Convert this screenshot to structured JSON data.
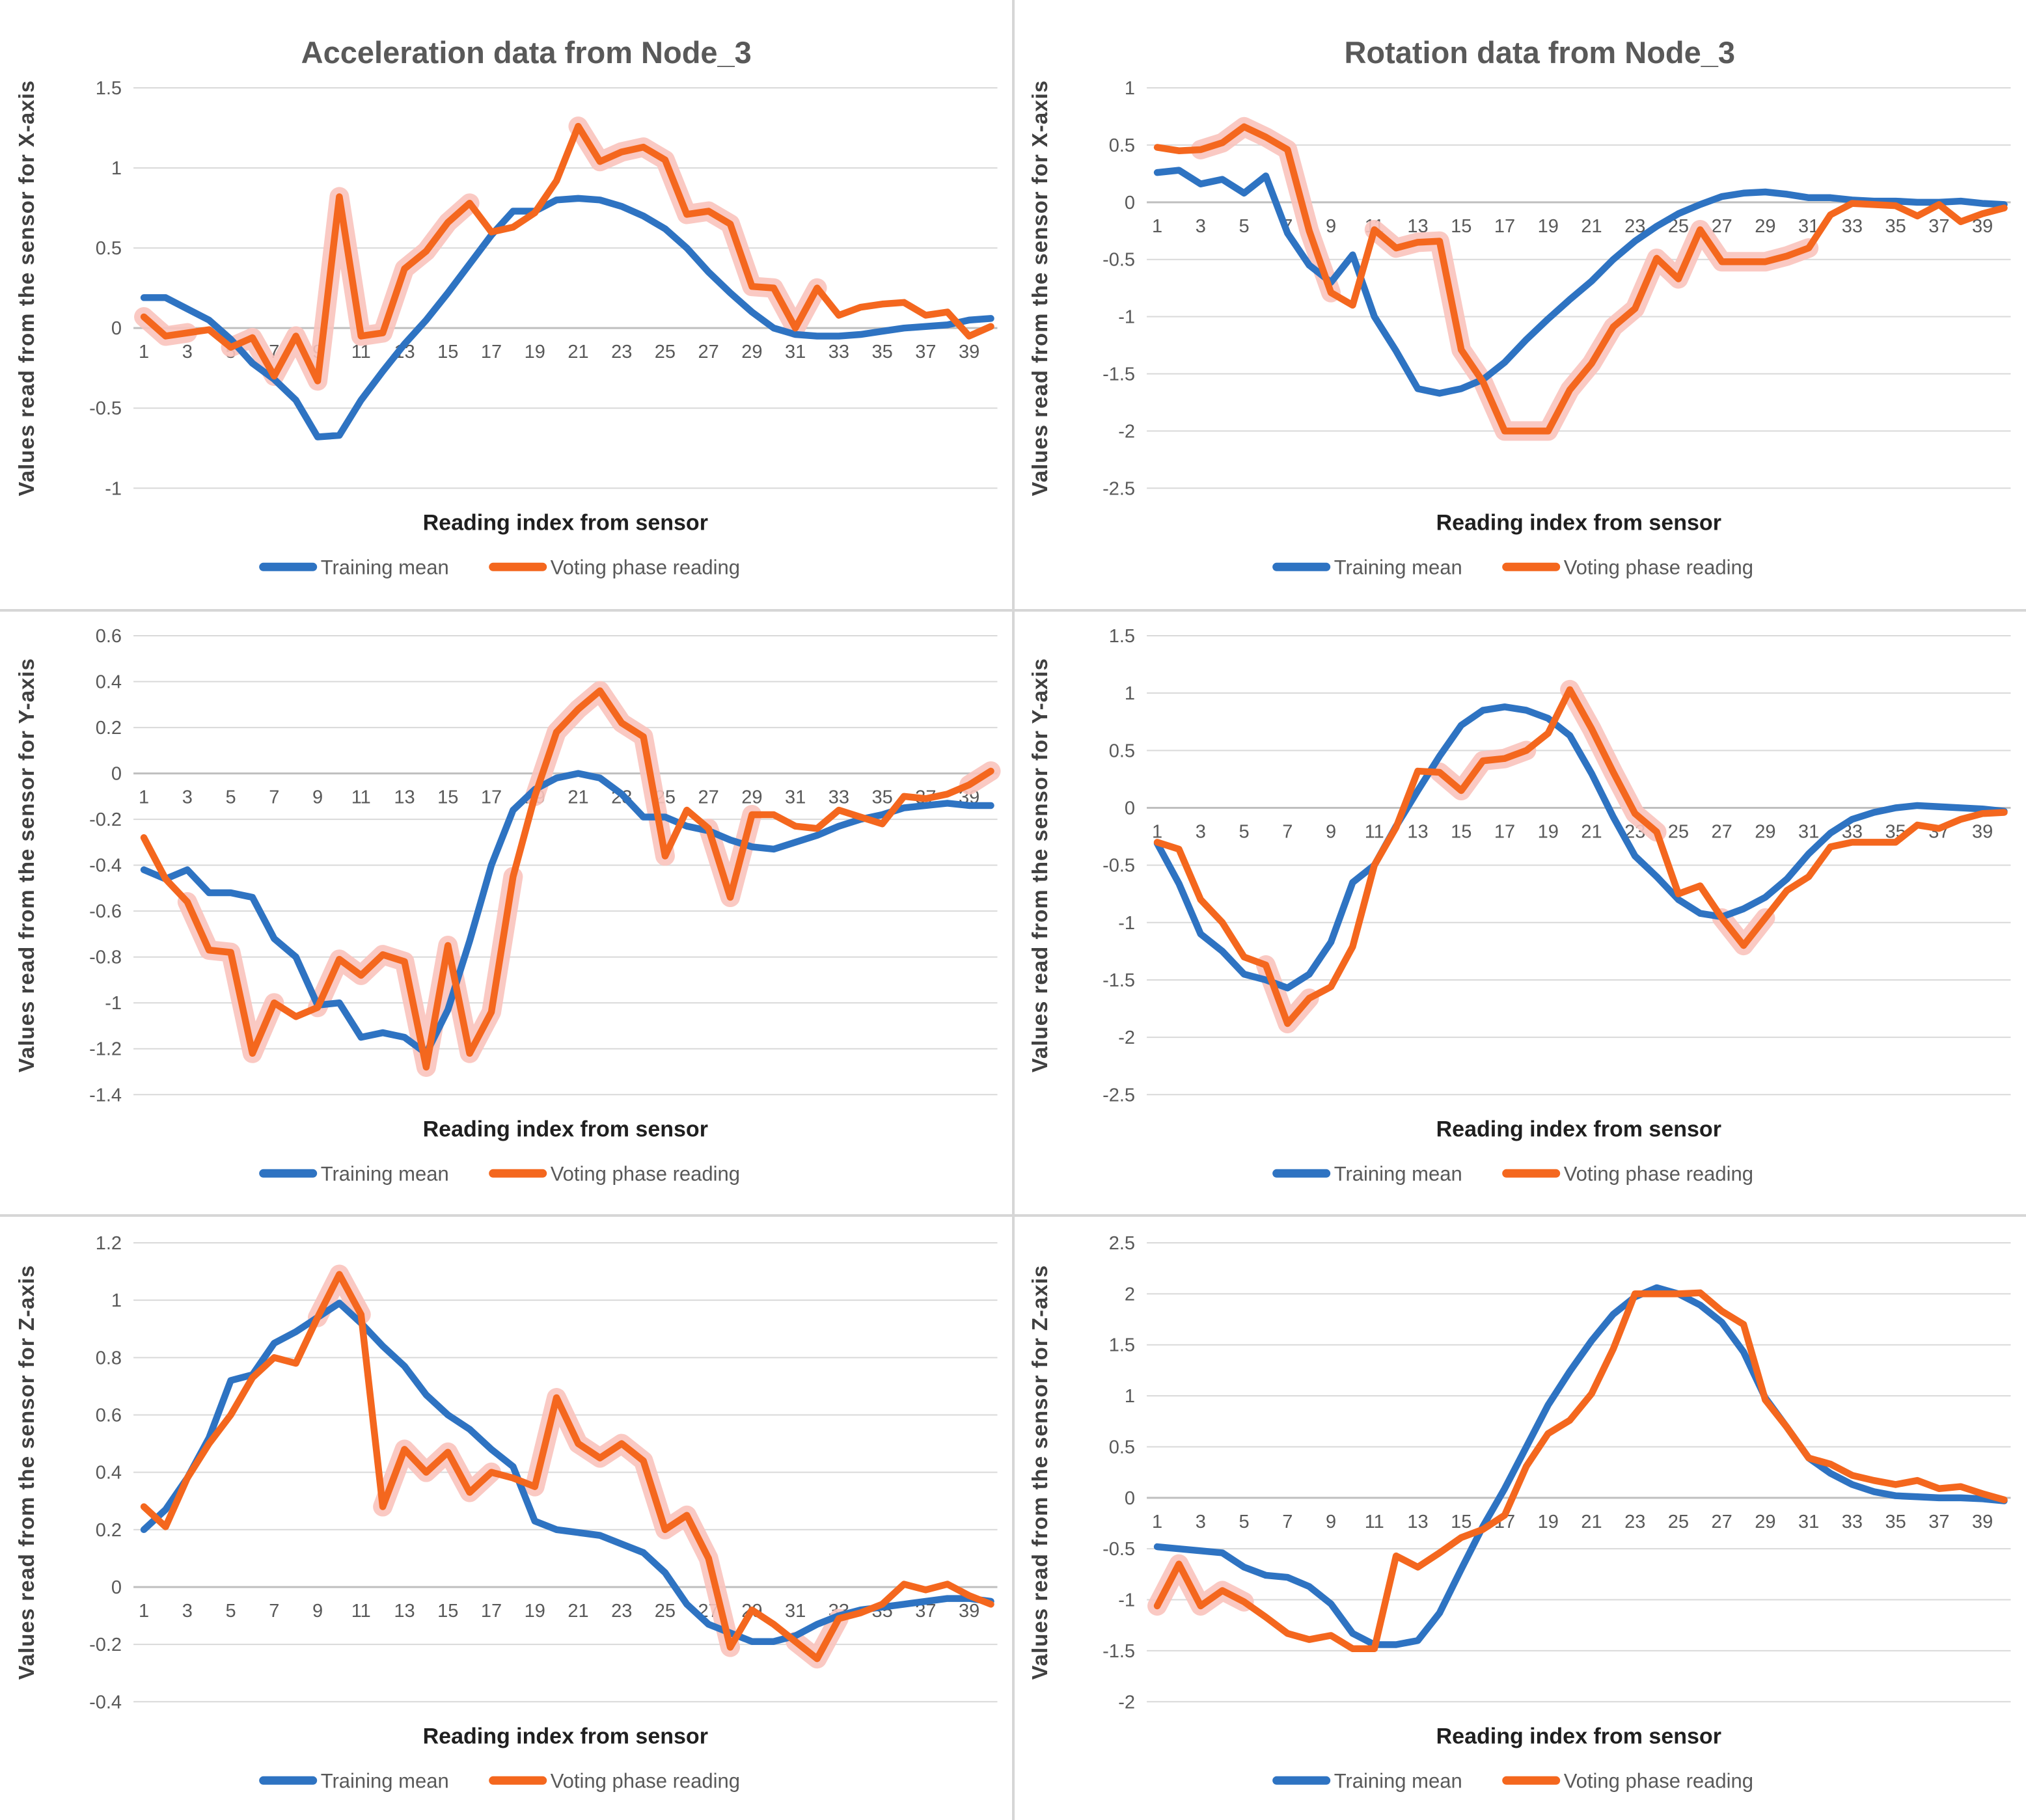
{
  "figure": {
    "background": "#ffffff"
  },
  "colors": {
    "training": "#2E73C2",
    "voting": "#F4671E",
    "highlight": "#FAC3BC",
    "gridline": "#D9D9D9",
    "zeroline": "#BFBFBF",
    "divider": "#D6D6D6",
    "title_text": "#595959",
    "tick_text": "#595959",
    "ylabel_text": "#404040",
    "xlabel_text": "#1F1F1F",
    "legend_text": "#595959"
  },
  "legend": {
    "training_label": "Training mean",
    "voting_label": "Voting phase reading"
  },
  "chart_data": [
    {
      "id": "acceleration-x",
      "type": "line",
      "title": "Acceleration data from Node_3",
      "ylabel": "Values read from the sensor for X-axis",
      "xlabel": "Reading index from sensor",
      "ylim": [
        -1,
        1.5
      ],
      "yticks": [
        "1.5",
        "1",
        "0.5",
        "0",
        "-0.5",
        "-1"
      ],
      "x_ticks": [
        1,
        3,
        5,
        7,
        9,
        11,
        13,
        15,
        17,
        19,
        21,
        23,
        25,
        27,
        29,
        31,
        33,
        35,
        37,
        39
      ],
      "grid": true,
      "legend_position": "bottom",
      "series": [
        {
          "name": "Training mean",
          "values": [
            0.19,
            0.19,
            0.12,
            0.05,
            -0.07,
            -0.22,
            -0.32,
            -0.45,
            -0.68,
            -0.67,
            -0.45,
            -0.27,
            -0.1,
            0.05,
            0.22,
            0.4,
            0.58,
            0.73,
            0.73,
            0.8,
            0.81,
            0.8,
            0.76,
            0.7,
            0.62,
            0.5,
            0.35,
            0.22,
            0.1,
            0.0,
            -0.04,
            -0.05,
            -0.05,
            -0.04,
            -0.02,
            0.0,
            0.01,
            0.02,
            0.05,
            0.06
          ]
        },
        {
          "name": "Voting phase reading",
          "values": [
            0.07,
            -0.05,
            -0.03,
            -0.01,
            -0.12,
            -0.06,
            -0.3,
            -0.05,
            -0.33,
            0.82,
            -0.05,
            -0.03,
            0.37,
            0.48,
            0.66,
            0.78,
            0.6,
            0.63,
            0.72,
            0.92,
            1.26,
            1.04,
            1.1,
            1.13,
            1.05,
            0.71,
            0.73,
            0.65,
            0.26,
            0.25,
            0.0,
            0.25,
            0.08,
            0.13,
            0.15,
            0.16,
            0.08,
            0.1,
            -0.05,
            0.01
          ]
        }
      ],
      "highlight_segments": [
        [
          1,
          3
        ],
        [
          5,
          16
        ],
        [
          21,
          32
        ]
      ]
    },
    {
      "id": "rotation-x",
      "type": "line",
      "title": "Rotation data from Node_3",
      "ylabel": "Values read from the sensor for X-axis",
      "xlabel": "Reading index from sensor",
      "ylim": [
        -2.5,
        1
      ],
      "yticks": [
        "1",
        "0.5",
        "0",
        "-0.5",
        "-1",
        "-1.5",
        "-2",
        "-2.5"
      ],
      "x_ticks": [
        1,
        3,
        5,
        7,
        9,
        11,
        13,
        15,
        17,
        19,
        21,
        23,
        25,
        27,
        29,
        31,
        33,
        35,
        37,
        39
      ],
      "grid": true,
      "legend_position": "bottom",
      "series": [
        {
          "name": "Training mean",
          "values": [
            0.26,
            0.28,
            0.16,
            0.2,
            0.08,
            0.23,
            -0.27,
            -0.55,
            -0.7,
            -0.46,
            -1.0,
            -1.3,
            -1.63,
            -1.67,
            -1.63,
            -1.55,
            -1.4,
            -1.2,
            -1.02,
            -0.85,
            -0.69,
            -0.5,
            -0.34,
            -0.21,
            -0.1,
            -0.02,
            0.05,
            0.08,
            0.09,
            0.07,
            0.04,
            0.04,
            0.02,
            0.01,
            0.01,
            0.0,
            0.0,
            0.01,
            -0.01,
            -0.02
          ]
        },
        {
          "name": "Voting phase reading",
          "values": [
            0.48,
            0.45,
            0.46,
            0.52,
            0.66,
            0.57,
            0.46,
            -0.25,
            -0.79,
            -0.9,
            -0.24,
            -0.4,
            -0.35,
            -0.34,
            -1.29,
            -1.57,
            -2.0,
            -2.0,
            -2.0,
            -1.64,
            -1.41,
            -1.09,
            -0.93,
            -0.49,
            -0.67,
            -0.24,
            -0.52,
            -0.52,
            -0.52,
            -0.47,
            -0.4,
            -0.11,
            -0.01,
            -0.02,
            -0.03,
            -0.12,
            -0.02,
            -0.17,
            -0.1,
            -0.05
          ]
        }
      ],
      "highlight_segments": [
        [
          3,
          9
        ],
        [
          11,
          31
        ]
      ]
    },
    {
      "id": "acceleration-y",
      "type": "line",
      "title": null,
      "ylabel": "Values read from the sensor for Y-axis",
      "xlabel": "Reading index from sensor",
      "ylim": [
        -1.4,
        0.6
      ],
      "yticks": [
        "0.6",
        "0.4",
        "0.2",
        "0",
        "-0.2",
        "-0.4",
        "-0.6",
        "-0.8",
        "-1",
        "-1.2",
        "-1.4"
      ],
      "x_ticks": [
        1,
        3,
        5,
        7,
        9,
        11,
        13,
        15,
        17,
        19,
        21,
        23,
        25,
        27,
        29,
        31,
        33,
        35,
        37,
        39
      ],
      "grid": true,
      "legend_position": "bottom",
      "series": [
        {
          "name": "Training mean",
          "values": [
            -0.42,
            -0.46,
            -0.42,
            -0.52,
            -0.52,
            -0.54,
            -0.72,
            -0.8,
            -1.01,
            -1.0,
            -1.15,
            -1.13,
            -1.15,
            -1.22,
            -1.03,
            -0.73,
            -0.4,
            -0.16,
            -0.07,
            -0.02,
            0.0,
            -0.02,
            -0.09,
            -0.19,
            -0.19,
            -0.23,
            -0.25,
            -0.29,
            -0.32,
            -0.33,
            -0.3,
            -0.27,
            -0.23,
            -0.2,
            -0.18,
            -0.15,
            -0.14,
            -0.13,
            -0.14,
            -0.14
          ]
        },
        {
          "name": "Voting phase reading",
          "values": [
            -0.28,
            -0.46,
            -0.56,
            -0.77,
            -0.78,
            -1.22,
            -1.0,
            -1.06,
            -1.02,
            -0.81,
            -0.88,
            -0.79,
            -0.82,
            -1.28,
            -0.75,
            -1.22,
            -1.04,
            -0.45,
            -0.1,
            0.18,
            0.28,
            0.36,
            0.22,
            0.16,
            -0.36,
            -0.16,
            -0.24,
            -0.54,
            -0.18,
            -0.18,
            -0.23,
            -0.24,
            -0.16,
            -0.19,
            -0.22,
            -0.1,
            -0.11,
            -0.09,
            -0.05,
            0.01
          ]
        }
      ],
      "highlight_segments": [
        [
          3,
          7
        ],
        [
          9,
          18
        ],
        [
          19,
          25
        ],
        [
          27,
          29
        ],
        [
          39,
          40
        ]
      ]
    },
    {
      "id": "rotation-y",
      "type": "line",
      "title": null,
      "ylabel": "Values read from the sensor for Y-axis",
      "xlabel": "Reading index from sensor",
      "ylim": [
        -2.5,
        1.5
      ],
      "yticks": [
        "1.5",
        "1",
        "0.5",
        "0",
        "-0.5",
        "-1",
        "-1.5",
        "-2",
        "-2.5"
      ],
      "x_ticks": [
        1,
        3,
        5,
        7,
        9,
        11,
        13,
        15,
        17,
        19,
        21,
        23,
        25,
        27,
        29,
        31,
        33,
        35,
        37,
        39
      ],
      "grid": true,
      "legend_position": "bottom",
      "series": [
        {
          "name": "Training mean",
          "values": [
            -0.31,
            -0.66,
            -1.1,
            -1.25,
            -1.45,
            -1.5,
            -1.57,
            -1.45,
            -1.17,
            -0.65,
            -0.5,
            -0.16,
            0.15,
            0.45,
            0.72,
            0.85,
            0.88,
            0.85,
            0.78,
            0.63,
            0.3,
            -0.08,
            -0.42,
            -0.6,
            -0.8,
            -0.92,
            -0.95,
            -0.88,
            -0.78,
            -0.62,
            -0.4,
            -0.22,
            -0.1,
            -0.04,
            0.0,
            0.02,
            0.01,
            0.0,
            -0.01,
            -0.03
          ]
        },
        {
          "name": "Voting phase reading",
          "values": [
            -0.3,
            -0.36,
            -0.8,
            -1.0,
            -1.3,
            -1.37,
            -1.88,
            -1.66,
            -1.56,
            -1.21,
            -0.5,
            -0.17,
            0.32,
            0.31,
            0.15,
            0.41,
            0.43,
            0.5,
            0.65,
            1.03,
            0.69,
            0.31,
            -0.05,
            -0.21,
            -0.75,
            -0.68,
            -0.96,
            -1.2,
            -0.96,
            -0.72,
            -0.6,
            -0.34,
            -0.3,
            -0.3,
            -0.3,
            -0.15,
            -0.18,
            -0.1,
            -0.05,
            -0.04
          ]
        }
      ],
      "highlight_segments": [
        [
          6,
          8
        ],
        [
          14,
          18
        ],
        [
          20,
          24
        ],
        [
          27,
          29
        ]
      ]
    },
    {
      "id": "acceleration-z",
      "type": "line",
      "title": null,
      "ylabel": "Values read from the sensor for Z-axis",
      "xlabel": "Reading index from sensor",
      "ylim": [
        -0.4,
        1.2
      ],
      "yticks": [
        "1.2",
        "1",
        "0.8",
        "0.6",
        "0.4",
        "0.2",
        "0",
        "-0.2",
        "-0.4"
      ],
      "x_ticks": [
        1,
        3,
        5,
        7,
        9,
        11,
        13,
        15,
        17,
        19,
        21,
        23,
        25,
        27,
        29,
        31,
        33,
        35,
        37,
        39
      ],
      "grid": true,
      "legend_position": "bottom",
      "series": [
        {
          "name": "Training mean",
          "values": [
            0.2,
            0.27,
            0.38,
            0.52,
            0.72,
            0.74,
            0.85,
            0.89,
            0.94,
            0.99,
            0.92,
            0.84,
            0.77,
            0.67,
            0.6,
            0.55,
            0.48,
            0.42,
            0.23,
            0.2,
            0.19,
            0.18,
            0.15,
            0.12,
            0.05,
            -0.06,
            -0.13,
            -0.16,
            -0.19,
            -0.19,
            -0.17,
            -0.13,
            -0.1,
            -0.08,
            -0.07,
            -0.06,
            -0.05,
            -0.04,
            -0.04,
            -0.05
          ]
        },
        {
          "name": "Voting phase reading",
          "values": [
            0.28,
            0.21,
            0.38,
            0.5,
            0.6,
            0.73,
            0.8,
            0.78,
            0.94,
            1.09,
            0.95,
            0.28,
            0.48,
            0.4,
            0.47,
            0.33,
            0.4,
            0.38,
            0.35,
            0.66,
            0.5,
            0.45,
            0.5,
            0.44,
            0.2,
            0.25,
            0.1,
            -0.21,
            -0.08,
            -0.13,
            -0.19,
            -0.25,
            -0.11,
            -0.09,
            -0.06,
            0.01,
            -0.01,
            0.01,
            -0.03,
            -0.06
          ]
        }
      ],
      "highlight_segments": [
        [
          9,
          11
        ],
        [
          12,
          17
        ],
        [
          19,
          28
        ],
        [
          31,
          33
        ]
      ]
    },
    {
      "id": "rotation-z",
      "type": "line",
      "title": null,
      "ylabel": "Values read from the sensor for Z-axis",
      "xlabel": "Reading index from sensor",
      "ylim": [
        -2,
        2.5
      ],
      "yticks": [
        "2.5",
        "2",
        "1.5",
        "1",
        "0.5",
        "0",
        "-0.5",
        "-1",
        "-1.5",
        "-2"
      ],
      "x_ticks": [
        1,
        3,
        5,
        7,
        9,
        11,
        13,
        15,
        17,
        19,
        21,
        23,
        25,
        27,
        29,
        31,
        33,
        35,
        37,
        39
      ],
      "grid": true,
      "legend_position": "bottom",
      "series": [
        {
          "name": "Training mean",
          "values": [
            -0.48,
            -0.5,
            -0.52,
            -0.54,
            -0.68,
            -0.76,
            -0.78,
            -0.87,
            -1.04,
            -1.33,
            -1.44,
            -1.44,
            -1.4,
            -1.13,
            -0.7,
            -0.28,
            0.09,
            0.5,
            0.91,
            1.24,
            1.54,
            1.8,
            1.97,
            2.06,
            2.0,
            1.89,
            1.72,
            1.43,
            0.98,
            0.69,
            0.39,
            0.24,
            0.13,
            0.06,
            0.02,
            0.01,
            0.0,
            0.0,
            -0.01,
            -0.03
          ]
        },
        {
          "name": "Voting phase reading",
          "values": [
            -1.06,
            -0.65,
            -1.06,
            -0.91,
            -1.02,
            -1.17,
            -1.33,
            -1.39,
            -1.35,
            -1.48,
            -1.48,
            -0.57,
            -0.68,
            -0.54,
            -0.39,
            -0.31,
            -0.17,
            0.31,
            0.63,
            0.76,
            1.02,
            1.46,
            2.0,
            2.0,
            2.0,
            2.01,
            1.83,
            1.7,
            0.96,
            0.69,
            0.39,
            0.33,
            0.22,
            0.17,
            0.13,
            0.17,
            0.09,
            0.11,
            0.04,
            -0.02
          ]
        }
      ],
      "highlight_segments": [
        [
          1,
          5
        ]
      ]
    }
  ]
}
